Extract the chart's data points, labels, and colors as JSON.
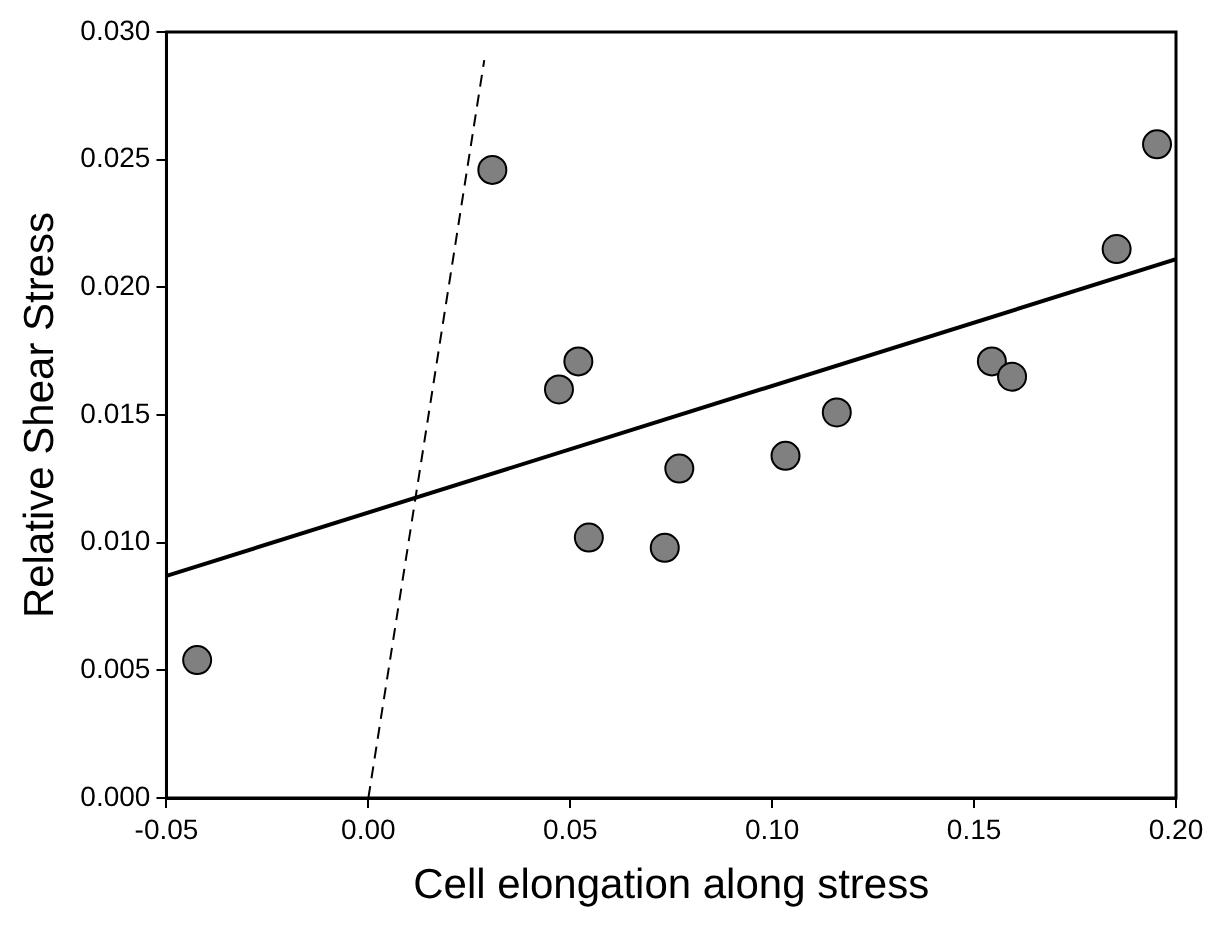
{
  "chart_data": {
    "type": "scatter",
    "xlabel": "Cell elongation along stress",
    "ylabel": "Relative Shear Stress",
    "xlim": [
      -0.05,
      0.2
    ],
    "ylim": [
      0,
      0.03
    ],
    "xticks": [
      {
        "value": -0.05,
        "label": "-0.05"
      },
      {
        "value": 0,
        "label": "0.00"
      },
      {
        "value": 0.05,
        "label": "0.05"
      },
      {
        "value": 0.1,
        "label": "0.10"
      },
      {
        "value": 0.15,
        "label": "0.15"
      },
      {
        "value": 0.2,
        "label": "0.20"
      }
    ],
    "yticks": [
      {
        "value": 0,
        "label": "0.000"
      },
      {
        "value": 0.005,
        "label": "0.005"
      },
      {
        "value": 0.01,
        "label": "0.010"
      },
      {
        "value": 0.015,
        "label": "0.015"
      },
      {
        "value": 0.02,
        "label": "0.020"
      },
      {
        "value": 0.025,
        "label": "0.025"
      },
      {
        "value": 0.03,
        "label": "0.030"
      }
    ],
    "grid": false,
    "legend": false,
    "marker": "circle",
    "series": [
      {
        "color": "#808080",
        "x": [
          -0.0424,
          0.0307,
          0.0472,
          0.052,
          0.0546,
          0.0734,
          0.077,
          0.1033,
          0.116,
          0.1544,
          0.1594,
          0.1853,
          0.1953
        ],
        "values": [
          0.0054,
          0.0246,
          0.016,
          0.0171,
          0.0102,
          0.0098,
          0.0129,
          0.0134,
          0.0151,
          0.0171,
          0.0165,
          0.0215,
          0.0256
        ]
      },
      {
        "type": "line",
        "color": "#000000",
        "line_style": "solid",
        "marker": "none",
        "x": [
          -0.05,
          0.2
        ],
        "values": [
          0.0087,
          0.0211
        ]
      },
      {
        "type": "line",
        "color": "#000000",
        "line_style": "dashed",
        "marker": "none",
        "x": [
          0,
          0.0287
        ],
        "values": [
          0,
          0.0289
        ]
      }
    ]
  }
}
